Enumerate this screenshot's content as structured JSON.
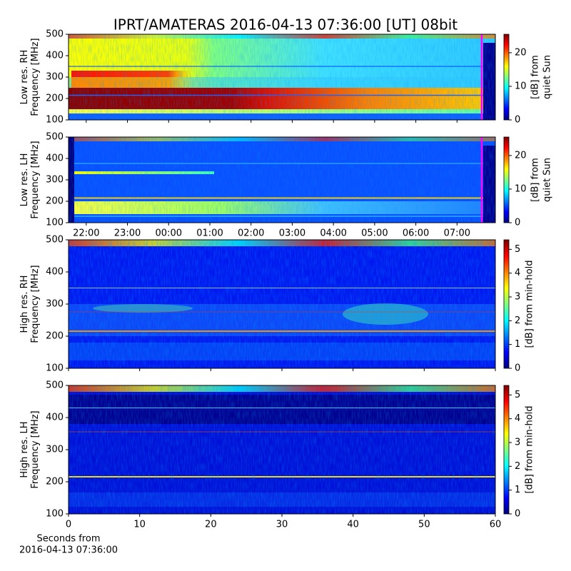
{
  "figure": {
    "title": "IPRT/AMATERAS 2016-04-13 07:36:00 [UT]   08bit"
  },
  "chart_data": [
    {
      "type": "heatmap",
      "colormap": "jet",
      "ylabel": [
        "Low res. RH",
        "Frequency [MHz]"
      ],
      "ylim": [
        100,
        500
      ],
      "yticks": [
        100,
        200,
        300,
        400,
        500
      ],
      "xlim": [
        21.57,
        31.93
      ],
      "xticks": [
        {
          "value": 22,
          "label": "22:00"
        },
        {
          "value": 23,
          "label": "23:00"
        },
        {
          "value": 24,
          "label": "00:00"
        },
        {
          "value": 25,
          "label": "01:00"
        },
        {
          "value": 26,
          "label": "02:00"
        },
        {
          "value": 27,
          "label": "03:00"
        },
        {
          "value": 28,
          "label": "04:00"
        },
        {
          "value": 29,
          "label": "05:00"
        },
        {
          "value": 30,
          "label": "06:00"
        },
        {
          "value": 31,
          "label": "07:00"
        }
      ],
      "show_xtick_labels": false,
      "marker": {
        "value": 31.6,
        "color": "#ff00ff"
      },
      "colorbar": {
        "label": [
          "[dB] from",
          "quiet Sun"
        ],
        "lim": [
          0,
          25.5
        ],
        "ticks": [
          0,
          10,
          20
        ]
      }
    },
    {
      "type": "heatmap",
      "colormap": "jet",
      "ylabel": [
        "Low res. LH",
        "Frequency [MHz]"
      ],
      "ylim": [
        100,
        500
      ],
      "yticks": [
        100,
        200,
        300,
        400,
        500
      ],
      "xlim": [
        21.57,
        31.93
      ],
      "xticks": [
        {
          "value": 22,
          "label": "22:00"
        },
        {
          "value": 23,
          "label": "23:00"
        },
        {
          "value": 24,
          "label": "00:00"
        },
        {
          "value": 25,
          "label": "01:00"
        },
        {
          "value": 26,
          "label": "02:00"
        },
        {
          "value": 27,
          "label": "03:00"
        },
        {
          "value": 28,
          "label": "04:00"
        },
        {
          "value": 29,
          "label": "05:00"
        },
        {
          "value": 30,
          "label": "06:00"
        },
        {
          "value": 31,
          "label": "07:00"
        }
      ],
      "show_xtick_labels": true,
      "marker": {
        "value": 31.6,
        "color": "#ff00ff"
      },
      "colorbar": {
        "label": [
          "[dB] from",
          "quiet Sun"
        ],
        "lim": [
          0,
          25.5
        ],
        "ticks": [
          0,
          10,
          20
        ]
      }
    },
    {
      "type": "heatmap",
      "colormap": "jet",
      "ylabel": [
        "High res. RH",
        "Frequency [MHz]"
      ],
      "ylim": [
        100,
        500
      ],
      "yticks": [
        100,
        200,
        300,
        400,
        500
      ],
      "xlim": [
        0,
        60
      ],
      "xticks": [
        0,
        10,
        20,
        30,
        40,
        50,
        60
      ],
      "show_xtick_labels": false,
      "colorbar": {
        "label": [
          "[dB] from min-hold"
        ],
        "lim": [
          0,
          5.4
        ],
        "ticks": [
          0,
          1,
          2,
          3,
          4,
          5
        ]
      }
    },
    {
      "type": "heatmap",
      "colormap": "jet",
      "ylabel": [
        "High res. LH",
        "Frequency [MHz]"
      ],
      "ylim": [
        100,
        500
      ],
      "yticks": [
        100,
        200,
        300,
        400,
        500
      ],
      "xlim": [
        0,
        60
      ],
      "xticks": [
        0,
        10,
        20,
        30,
        40,
        50,
        60
      ],
      "show_xtick_labels": true,
      "xlabel": [
        "Seconds from",
        "2016-04-13 07:36:00"
      ],
      "colorbar": {
        "label": [
          "[dB] from min-hold"
        ],
        "lim": [
          0,
          5.4
        ],
        "ticks": [
          0,
          1,
          2,
          3,
          4,
          5
        ]
      }
    }
  ]
}
